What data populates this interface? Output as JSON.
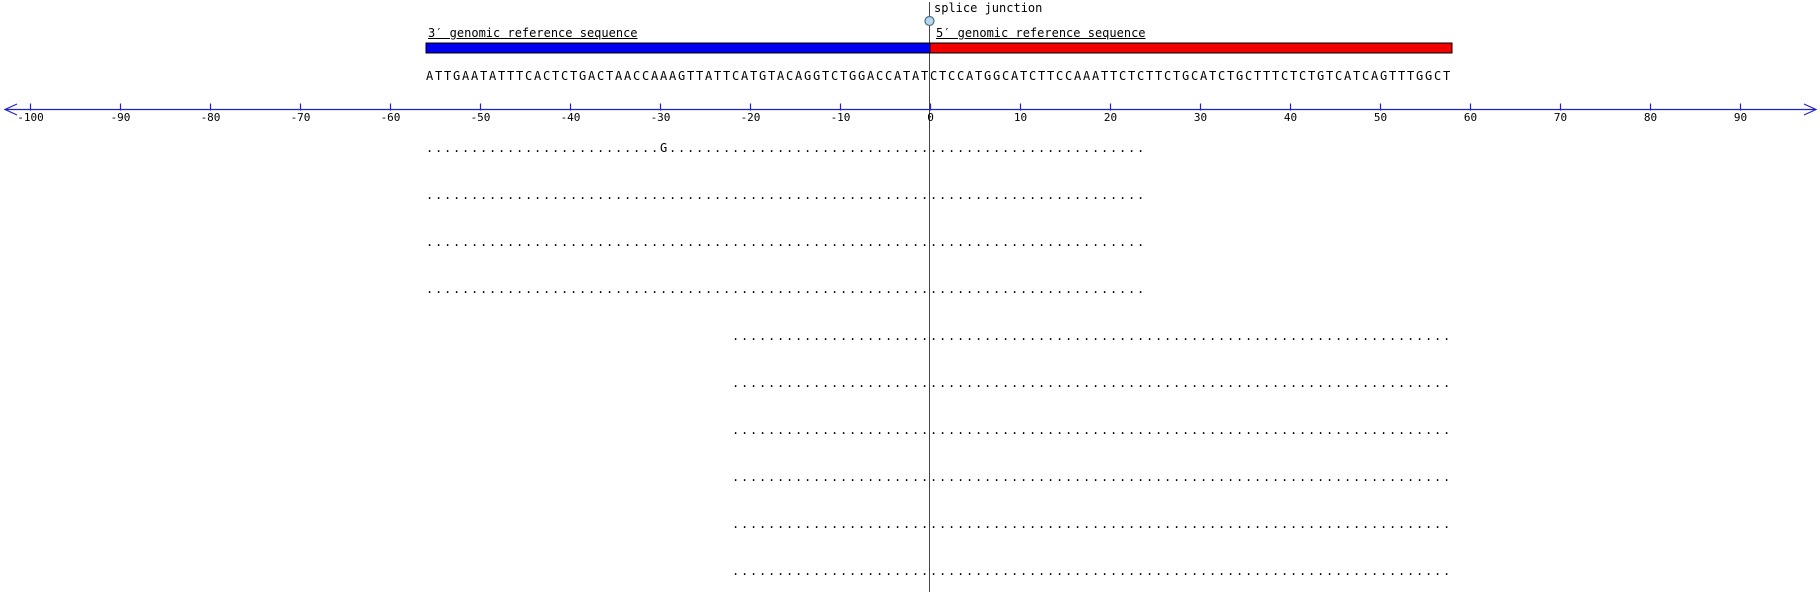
{
  "colors": {
    "background": "#ffffff",
    "axis": "#2222cc",
    "bar_3prime": "#0000f0",
    "bar_5prime": "#f00000",
    "bar_border": "#000000",
    "junction_line": "#444444",
    "marker_fill": "#b8d6e8",
    "marker_stroke": "#4a708c",
    "text": "#000000"
  },
  "chart_data": {
    "type": "sequence-alignment",
    "title": "",
    "labels": {
      "splice_junction": "splice junction",
      "ref3": "3′ genomic reference sequence",
      "ref5": "5′ genomic reference sequence"
    },
    "x_axis": {
      "min": -100,
      "max": 90,
      "tick_step": 10,
      "ticks": [
        -100,
        -90,
        -80,
        -70,
        -60,
        -50,
        -40,
        -30,
        -20,
        -10,
        0,
        10,
        20,
        30,
        40,
        50,
        60,
        70,
        80,
        90
      ],
      "arrows": "both",
      "grid": false
    },
    "reference": {
      "junction_position": 0,
      "seq_3prime": "ATTGAATATTTCACTCTGACTAACCAAAGTTATTCATGTACAGGTCTGGACCATAT",
      "seq_5prime": "CTCCATGGCATCTTCCAAATTCTCTTCTGCATCTGCTTTCTCTGTCATCAGTTTGGCT",
      "bar_3prime": {
        "start": -56,
        "end": 0
      },
      "bar_5prime": {
        "start": 0,
        "end": 58
      }
    },
    "reads": [
      {
        "start": -56,
        "length": 80,
        "bases": "..........................G....................................................."
      },
      {
        "start": -56,
        "length": 80,
        "bases": "................................................................................"
      },
      {
        "start": -56,
        "length": 80,
        "bases": "................................................................................"
      },
      {
        "start": -56,
        "length": 80,
        "bases": "................................................................................"
      },
      {
        "start": -22,
        "length": 80,
        "bases": "................................................................................"
      },
      {
        "start": -22,
        "length": 80,
        "bases": "................................................................................"
      },
      {
        "start": -22,
        "length": 80,
        "bases": "................................................................................"
      },
      {
        "start": -22,
        "length": 80,
        "bases": "................................................................................"
      },
      {
        "start": -22,
        "length": 80,
        "bases": "................................................................................"
      },
      {
        "start": -22,
        "length": 80,
        "bases": "................................................................................"
      }
    ],
    "mismatches": [
      {
        "read_index": 0,
        "position": -30,
        "base": "G"
      }
    ]
  }
}
